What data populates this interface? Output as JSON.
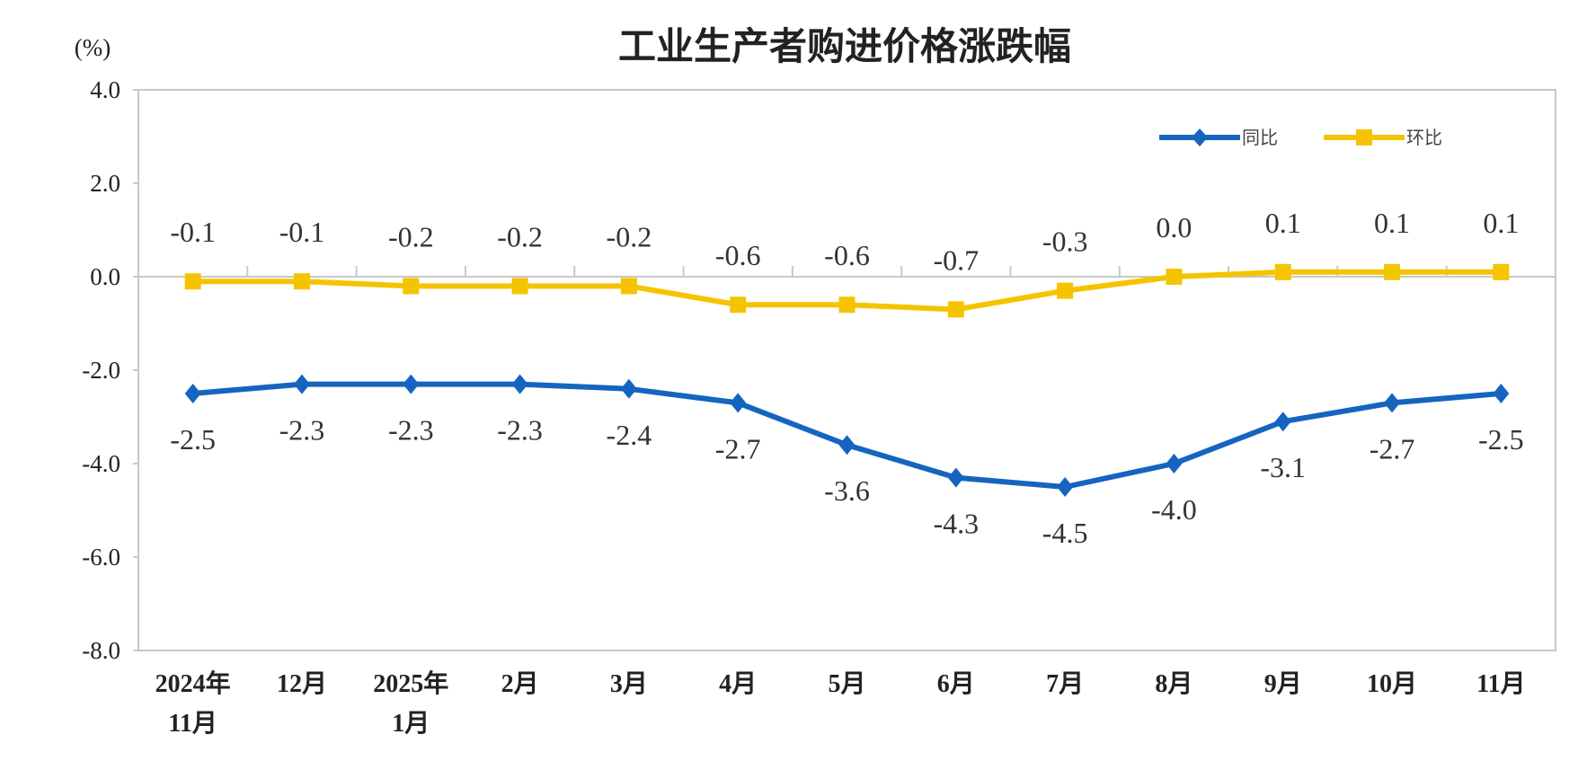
{
  "chart_data": {
    "type": "line",
    "title": "工业生产者购进价格涨跌幅",
    "ylabel": "(%)",
    "ylim": [
      -8.0,
      4.0
    ],
    "yticks": [
      "4.0",
      "2.0",
      "0.0",
      "-2.0",
      "-4.0",
      "-6.0",
      "-8.0"
    ],
    "categories": [
      [
        "2024年",
        "11月"
      ],
      [
        "12月"
      ],
      [
        "2025年",
        "1月"
      ],
      [
        "2月"
      ],
      [
        "3月"
      ],
      [
        "4月"
      ],
      [
        "5月"
      ],
      [
        "6月"
      ],
      [
        "7月"
      ],
      [
        "8月"
      ],
      [
        "9月"
      ],
      [
        "10月"
      ],
      [
        "11月"
      ]
    ],
    "grid": false,
    "legend_position": "top-right",
    "series": [
      {
        "name": "同比",
        "color": "#1565C0",
        "marker": "diamond",
        "values": [
          -2.5,
          -2.3,
          -2.3,
          -2.3,
          -2.4,
          -2.7,
          -3.6,
          -4.3,
          -4.5,
          -4.0,
          -3.1,
          -2.7,
          -2.5
        ],
        "labels": [
          "-2.5",
          "-2.3",
          "-2.3",
          "-2.3",
          "-2.4",
          "-2.7",
          "-3.6",
          "-4.3",
          "-4.5",
          "-4.0",
          "-3.1",
          "-2.7",
          "-2.5"
        ]
      },
      {
        "name": "环比",
        "color": "#F5C400",
        "marker": "square",
        "values": [
          -0.1,
          -0.1,
          -0.2,
          -0.2,
          -0.2,
          -0.6,
          -0.6,
          -0.7,
          -0.3,
          0.0,
          0.1,
          0.1,
          0.1
        ],
        "labels": [
          "-0.1",
          "-0.1",
          "-0.2",
          "-0.2",
          "-0.2",
          "-0.6",
          "-0.6",
          "-0.7",
          "-0.3",
          "0.0",
          "0.1",
          "0.1",
          "0.1"
        ]
      }
    ]
  }
}
